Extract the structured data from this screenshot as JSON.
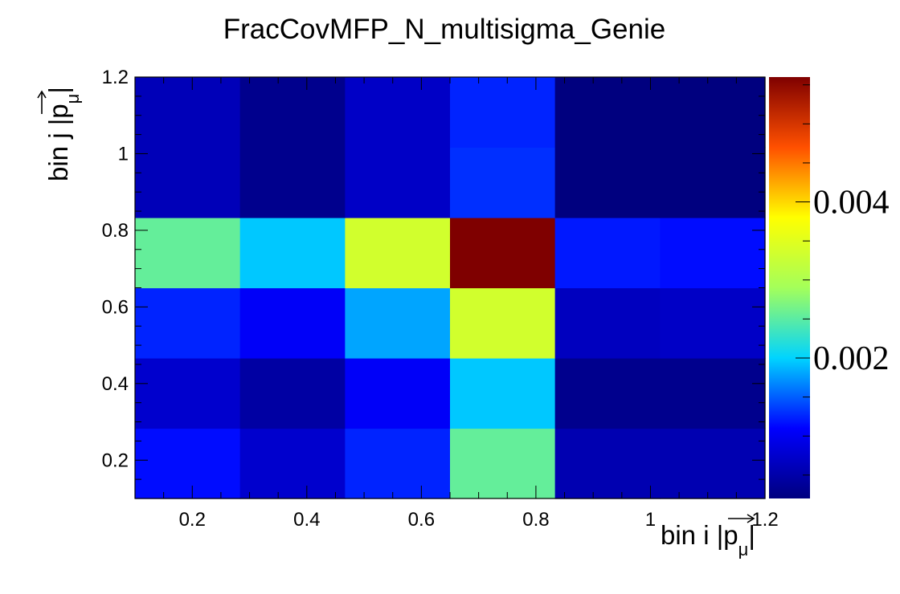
{
  "chart_data": {
    "type": "heatmap",
    "title": "FracCovMFP_N_multisigma_Genie",
    "xlabel": "bin i |p⃗μ|",
    "ylabel": "bin j |p⃗μ|",
    "xlabel_parts": {
      "prefix": "bin i |",
      "var": "p",
      "sub": "μ",
      "suffix": "|"
    },
    "ylabel_parts": {
      "prefix": "bin j |",
      "var": "p",
      "sub": "μ",
      "suffix": "|"
    },
    "xlim": [
      0.1,
      1.2
    ],
    "ylim": [
      0.1,
      1.2
    ],
    "x_edges": [
      0.1,
      0.2833,
      0.4667,
      0.65,
      0.8333,
      1.0167,
      1.2
    ],
    "y_edges": [
      0.1,
      0.2833,
      0.4667,
      0.65,
      0.8333,
      1.0167,
      1.2
    ],
    "x_ticks": [
      0.2,
      0.4,
      0.6,
      0.8,
      1.0,
      1.2
    ],
    "x_tick_labels": [
      "0.2",
      "0.4",
      "0.6",
      "0.8",
      "1",
      "1.2"
    ],
    "y_ticks": [
      0.2,
      0.4,
      0.6,
      0.8,
      1.0,
      1.2
    ],
    "y_tick_labels": [
      "0.2",
      "0.4",
      "0.6",
      "0.8",
      "1",
      "1.2"
    ],
    "z_range": [
      0.0002,
      0.0056
    ],
    "z_ticks": [
      0.002,
      0.004
    ],
    "z_tick_labels": [
      "0.002",
      "0.004"
    ],
    "colormap": [
      "#00007f",
      "#0000ff",
      "#00d4ff",
      "#a4ff5a",
      "#ffff00",
      "#ff5000",
      "#7f0000"
    ],
    "values": [
      [
        0.00115,
        0.00075,
        0.00125,
        0.00255,
        0.00055,
        0.00055
      ],
      [
        0.00075,
        0.00045,
        0.00105,
        0.00195,
        0.0003,
        0.0003
      ],
      [
        0.00125,
        0.00105,
        0.0018,
        0.00335,
        0.00065,
        0.0007
      ],
      [
        0.00255,
        0.00195,
        0.00335,
        0.0056,
        0.0012,
        0.00115
      ],
      [
        0.0006,
        0.0003,
        0.0007,
        0.0013,
        0.0002,
        0.0002
      ],
      [
        0.0006,
        0.0003,
        0.0007,
        0.00125,
        0.0002,
        0.0002
      ]
    ]
  }
}
